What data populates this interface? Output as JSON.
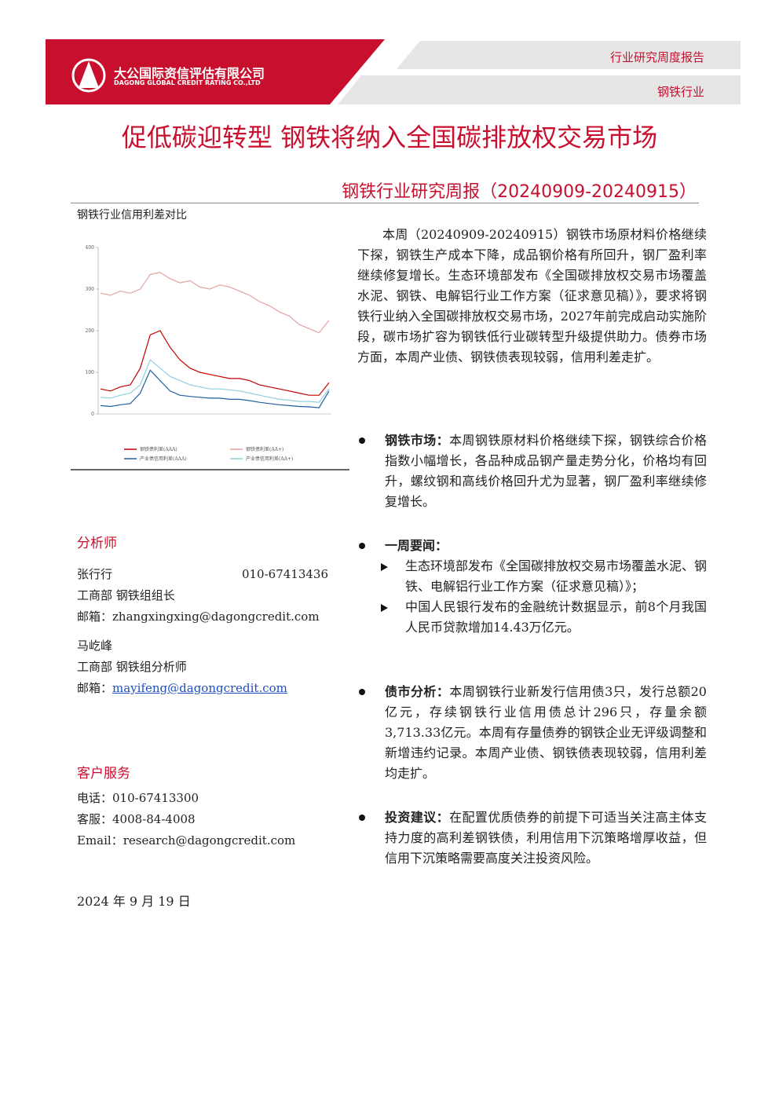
{
  "header": {
    "company_cn": "大公国际资信评估有限公司",
    "company_en": "DAGONG GLOBAL CREDIT RATING CO.,LTD",
    "report_type": "行业研究周度报告",
    "industry": "钢铁行业"
  },
  "title": "促低碳迎转型 钢铁将纳入全国碳排放权交易市场",
  "subtitle": "钢铁行业研究周报（20240909-20240915）",
  "figure": {
    "type": "line",
    "title": "钢铁行业信用利差对比",
    "ylim": [
      0,
      400
    ],
    "yticks": [
      0,
      100,
      200,
      300,
      400
    ],
    "series": [
      {
        "name": "钢铁债利差(AAA)",
        "color": "#c00000",
        "values": [
          60,
          55,
          65,
          70,
          110,
          190,
          200,
          160,
          130,
          110,
          100,
          95,
          90,
          85,
          85,
          80,
          70,
          65,
          60,
          55,
          50,
          45,
          45,
          75
        ]
      },
      {
        "name": "钢铁债利差(AA+)",
        "color": "#e3a3a3",
        "values": [
          290,
          285,
          295,
          290,
          300,
          335,
          340,
          325,
          315,
          320,
          305,
          300,
          310,
          305,
          295,
          285,
          270,
          260,
          245,
          235,
          215,
          205,
          195,
          225
        ]
      },
      {
        "name": "产业债信用利差(AAA)",
        "color": "#1f5f9f",
        "values": [
          20,
          18,
          22,
          25,
          50,
          105,
          80,
          55,
          45,
          42,
          40,
          38,
          38,
          35,
          35,
          32,
          28,
          25,
          22,
          20,
          18,
          17,
          15,
          55
        ]
      },
      {
        "name": "产业债信用利差(AA+)",
        "color": "#8fd0e0",
        "values": [
          40,
          38,
          45,
          50,
          70,
          130,
          110,
          90,
          80,
          70,
          65,
          60,
          60,
          58,
          55,
          50,
          45,
          40,
          35,
          33,
          30,
          30,
          28,
          60
        ]
      }
    ]
  },
  "summary": "本周（20240909-20240915）钢铁市场原材料价格继续下探，钢铁生产成本下降，成品钢价格有所回升，钢厂盈利率继续修复增长。生态环境部发布《全国碳排放权交易市场覆盖水泥、钢铁、电解铝行业工作方案（征求意见稿）》，要求将钢铁行业纳入全国碳排放权交易市场，2027年前完成启动实施阶段，碳市场扩容为钢铁低行业碳转型升级提供助力。债券市场方面，本周产业债、钢铁债表现较弱，信用利差走扩。",
  "bullets": [
    {
      "label": "钢铁市场：",
      "text": "本周钢铁原材料价格继续下探，钢铁综合价格指数小幅增长，各品种成品钢产量走势分化，价格均有回升，螺纹钢和高线价格回升尤为显著，钢厂盈利率继续修复增长。"
    },
    {
      "label": "一周要闻：",
      "items": [
        "生态环境部发布《全国碳排放权交易市场覆盖水泥、钢铁、电解铝行业工作方案（征求意见稿）》；",
        "中国人民银行发布的金融统计数据显示，前8个月我国人民币贷款增加14.43万亿元。"
      ]
    },
    {
      "label": "债市分析：",
      "text": "本周钢铁行业新发行信用债3只，发行总额20亿元，存续钢铁行业信用债总计296只，存量余额3,713.33亿元。本周有存量债券的钢铁企业无评级调整和新增违约记录。本周产业债、钢铁债表现较弱，信用利差均走扩。"
    },
    {
      "label": "投资建议：",
      "text": "在配置优质债券的前提下可适当关注高主体支持力度的高利差钢铁债，利用信用下沉策略增厚收益，但信用下沉策略需要高度关注投资风险。"
    }
  ],
  "analysts": {
    "heading": "分析师",
    "people": [
      {
        "name": "张行行",
        "phone": "010-67413436",
        "dept": "工商部 钢铁组组长",
        "email": "邮箱：zhangxingxing@dagongcredit.com"
      },
      {
        "name": "马屹峰",
        "dept": "工商部 钢铁组分析师",
        "email_label": "邮箱：",
        "email": "mayifeng@dagongcredit.com"
      }
    ]
  },
  "service": {
    "heading": "客户服务",
    "lines": [
      "电话：010-67413300",
      "客服：4008-84-4008",
      "Email：research@dagongcredit.com"
    ]
  },
  "date": "2024 年 9 月 19 日"
}
